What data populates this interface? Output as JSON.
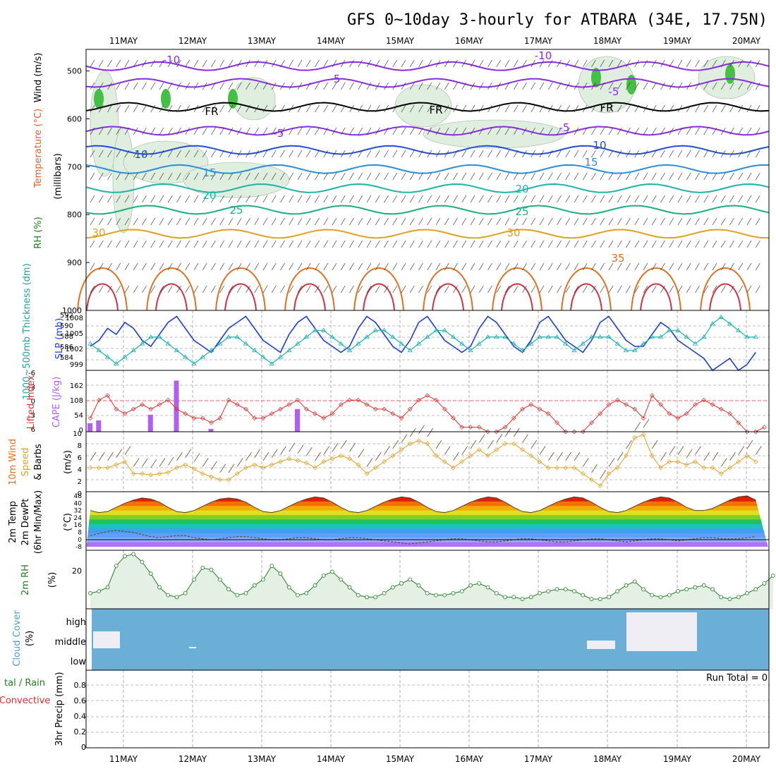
{
  "title": "GFS 0~10day 3-hourly for ATBARA (34E, 17.75N)",
  "date_labels": [
    "11MAY",
    "12MAY",
    "13MAY",
    "14MAY",
    "15MAY",
    "16MAY",
    "17MAY",
    "18MAY",
    "19MAY",
    "20MAY"
  ],
  "colors": {
    "grid": "#888888",
    "rh_fill": "#cfe6cf",
    "rh_dark": "#8fb08f",
    "rh_green": "#44c044",
    "cloud_blue": "#6baed6"
  },
  "panels": {
    "upper": {
      "ylabel": "(millibars)",
      "legend": [
        "RH (%)",
        "Temperature (°C)",
        "Wind (m/s)"
      ],
      "ticks": [
        "500",
        "600",
        "700",
        "800",
        "900",
        "1000"
      ]
    },
    "slp": {
      "ylabel_left": "1000~500mb Thickness (dm)",
      "ylabel_right": "SLP (mb)",
      "ticks_left": [
        "592",
        "590",
        "588",
        "586",
        "584"
      ],
      "ticks_right": [
        "1008",
        "1005",
        "1002",
        "999"
      ]
    },
    "cape": {
      "ylabel_left": "Lifted Index",
      "ylabel_right": "CAPE (J/kg)",
      "ticks_left": [
        "-6",
        "-3",
        "0",
        "3",
        "6"
      ],
      "ticks_right": [
        "162",
        "108",
        "54",
        "0"
      ]
    },
    "wind": {
      "ylabel": "10m Wind Speed & Barbs",
      "unit": "(m/s)",
      "ticks": [
        "10",
        "8",
        "6",
        "4",
        "2",
        "0"
      ]
    },
    "temp": {
      "ylabel": "2m Temp 2m DewPt (6hr Min/Max)",
      "unit": "(°C)",
      "ticks": [
        "48",
        "40",
        "32",
        "24",
        "16",
        "8",
        "0",
        "-8"
      ]
    },
    "rh": {
      "ylabel": "2m RH",
      "unit": "(%)",
      "ticks": [
        "20"
      ]
    },
    "cloud": {
      "ylabel": "Cloud Cover",
      "unit": "(%)",
      "ticks": [
        "high",
        "middle",
        "low"
      ]
    },
    "precip": {
      "ylabel": "Total / Rain Convective",
      "ylabel2": "3hr Precip (mm)",
      "ticks": [
        "0.8",
        "0.6",
        "0.4",
        "0.2",
        "0"
      ],
      "run_total": "Run Total = 0"
    }
  },
  "contour_labels": [
    "-10",
    "-5",
    "FR",
    "-5",
    "10",
    "15",
    "20",
    "25",
    "30",
    "-10",
    "-5",
    "FR",
    "-5",
    "10",
    "15",
    "20",
    "25",
    "30",
    "35",
    "FR"
  ],
  "chart_data": [
    {
      "type": "line",
      "name": "slp",
      "ylabel": "SLP (mb)",
      "ylim": [
        999,
        1009
      ],
      "values": [
        1003,
        1004,
        1006,
        1005,
        1007,
        1006,
        1004,
        1003,
        1005,
        1007,
        1008,
        1006,
        1004,
        1003,
        1002,
        1004,
        1006,
        1007,
        1008,
        1006,
        1004,
        1003,
        1002,
        1005,
        1007,
        1008,
        1006,
        1004,
        1003,
        1002,
        1003,
        1006,
        1008,
        1007,
        1005,
        1003,
        1002,
        1004,
        1007,
        1008,
        1006,
        1004,
        1003,
        1002,
        1003,
        1006,
        1008,
        1007,
        1005,
        1003,
        1002,
        1004,
        1007,
        1008,
        1006,
        1004,
        1003,
        1002,
        1004,
        1007,
        1008,
        1006,
        1004,
        1003,
        1003,
        1005,
        1007,
        1006,
        1004,
        1003,
        1002,
        1001,
        999,
        1000,
        1001,
        999,
        1000,
        1002
      ]
    },
    {
      "type": "line",
      "name": "thickness",
      "ylabel": "1000~500mb Thickness (dm)",
      "ylim": [
        583,
        592
      ],
      "values": [
        587,
        586,
        585,
        584,
        585,
        586,
        587,
        588,
        588,
        587,
        586,
        585,
        584,
        585,
        586,
        587,
        588,
        588,
        587,
        586,
        585,
        584,
        585,
        586,
        587,
        588,
        589,
        589,
        588,
        587,
        586,
        587,
        588,
        589,
        589,
        588,
        587,
        586,
        587,
        588,
        589,
        589,
        588,
        587,
        586,
        587,
        588,
        588,
        588,
        587,
        586,
        587,
        588,
        588,
        588,
        587,
        586,
        587,
        588,
        588,
        588,
        587,
        586,
        586,
        587,
        588,
        588,
        589,
        589,
        588,
        587,
        588,
        590,
        591,
        590,
        589,
        588,
        588
      ]
    },
    {
      "type": "line",
      "name": "lifted_index",
      "ylim": [
        6,
        -6
      ],
      "values": [
        3,
        -1,
        -2,
        1,
        2,
        1,
        0,
        1,
        0,
        -1,
        1,
        2,
        3,
        3,
        4,
        3,
        -1,
        0,
        1,
        3,
        3,
        2,
        1,
        0,
        -1,
        1,
        2,
        3,
        2,
        0,
        -1,
        -1,
        0,
        1,
        1,
        2,
        3,
        1,
        -1,
        -2,
        -1,
        1,
        3,
        5,
        5,
        5,
        6,
        6,
        5,
        3,
        1,
        0,
        1,
        2,
        4,
        6,
        6,
        6,
        4,
        2,
        0,
        -1,
        0,
        1,
        3,
        -2,
        0,
        2,
        3,
        2,
        0,
        -1,
        0,
        1,
        2,
        4,
        6,
        6,
        5
      ]
    },
    {
      "type": "bar",
      "name": "cape",
      "ylim": [
        0,
        216
      ],
      "values": [
        30,
        40,
        0,
        0,
        0,
        0,
        0,
        60,
        0,
        0,
        180,
        0,
        0,
        0,
        10,
        0,
        0,
        0,
        0,
        0,
        0,
        0,
        0,
        0,
        80,
        0,
        0,
        0,
        0,
        0,
        0,
        0,
        0,
        0,
        0,
        0,
        0,
        0,
        0,
        0,
        0,
        0,
        0,
        0,
        0,
        0,
        0,
        0,
        0,
        0,
        0,
        0,
        0,
        0,
        0,
        0,
        0,
        0,
        0,
        0,
        0,
        0,
        0,
        0,
        0,
        0,
        0,
        0,
        0,
        0,
        0,
        0,
        0,
        0,
        0,
        0,
        0,
        0
      ]
    },
    {
      "type": "line",
      "name": "wind_speed",
      "ylabel": "10m Wind Speed",
      "ylim": [
        0,
        10
      ],
      "values": [
        4,
        4,
        4,
        4.5,
        5,
        3,
        3,
        2.8,
        3,
        3.2,
        4,
        4.5,
        3.8,
        3,
        2.5,
        2,
        2,
        3,
        4,
        4.5,
        4,
        4.5,
        5,
        5.5,
        5.2,
        4.8,
        4,
        5,
        5.5,
        6,
        5.5,
        4.5,
        3,
        4,
        5,
        6,
        7,
        8,
        8.5,
        8,
        6,
        5,
        4,
        5,
        6,
        7,
        6,
        7,
        8,
        8,
        7,
        6,
        5,
        4,
        4,
        4,
        4,
        3,
        2,
        1,
        3,
        4,
        6,
        9,
        9.5,
        6,
        4,
        5,
        5,
        4.5,
        5,
        4,
        4,
        3,
        4,
        5,
        6,
        5
      ]
    },
    {
      "type": "area",
      "name": "temp_2m",
      "ylabel": "2m Temp",
      "ylim": [
        -8,
        48
      ],
      "values": [
        30,
        28,
        29,
        33,
        37,
        40,
        42,
        41,
        38,
        33,
        29,
        28,
        30,
        34,
        38,
        41,
        42,
        41,
        38,
        33,
        29,
        28,
        30,
        34,
        38,
        41,
        43,
        42,
        38,
        33,
        29,
        28,
        30,
        34,
        38,
        41,
        43,
        42,
        38,
        33,
        29,
        28,
        30,
        34,
        38,
        41,
        43,
        42,
        38,
        33,
        29,
        28,
        30,
        34,
        38,
        41,
        43,
        42,
        38,
        33,
        29,
        28,
        30,
        34,
        38,
        41,
        43,
        42,
        38,
        33,
        30,
        30,
        32,
        36,
        40,
        43,
        44,
        40
      ]
    },
    {
      "type": "line",
      "name": "dewpt_2m",
      "ylim": [
        -8,
        48
      ],
      "values": [
        6,
        8,
        10,
        11,
        10,
        9,
        7,
        5,
        4,
        5,
        6,
        6,
        4,
        3,
        2,
        3,
        4,
        5,
        5,
        4,
        3,
        2,
        2,
        3,
        4,
        4,
        3,
        2,
        2,
        3,
        4,
        4,
        3,
        2,
        1,
        0,
        -1,
        -2,
        -1,
        0,
        1,
        2,
        3,
        3,
        2,
        1,
        0,
        0,
        1,
        2,
        3,
        3,
        2,
        1,
        0,
        0,
        1,
        2,
        3,
        3,
        2,
        1,
        0,
        1,
        2,
        3,
        3,
        2,
        1,
        2,
        3,
        4,
        4,
        3,
        3,
        3,
        4,
        5
      ]
    },
    {
      "type": "area",
      "name": "rh_2m",
      "ylabel": "2m RH",
      "ylim": [
        0,
        30
      ],
      "values": [
        8,
        9,
        11,
        22,
        27,
        28,
        24,
        18,
        11,
        7,
        6,
        8,
        15,
        21,
        20,
        15,
        10,
        7,
        8,
        12,
        15,
        22,
        18,
        11,
        7,
        8,
        12,
        17,
        19,
        15,
        11,
        7,
        6,
        6,
        8,
        11,
        13,
        15,
        12,
        8,
        7,
        7,
        8,
        9,
        12,
        13,
        11,
        8,
        6,
        6,
        5,
        6,
        8,
        9,
        10,
        10,
        9,
        7,
        5,
        5,
        6,
        9,
        12,
        14,
        10,
        7,
        6,
        7,
        9,
        10,
        11,
        12,
        10,
        6,
        5,
        6,
        8,
        10,
        13,
        17
      ]
    },
    {
      "type": "bar",
      "name": "cloud_cover",
      "ylabel": "Cloud Cover",
      "categories": [
        "low",
        "middle",
        "high"
      ]
    },
    {
      "type": "line",
      "name": "precip_3hr",
      "ylabel": "3hr Precip (mm)",
      "ylim": [
        0,
        0.9
      ],
      "values": [
        0,
        0,
        0,
        0,
        0,
        0,
        0,
        0,
        0,
        0
      ]
    }
  ]
}
